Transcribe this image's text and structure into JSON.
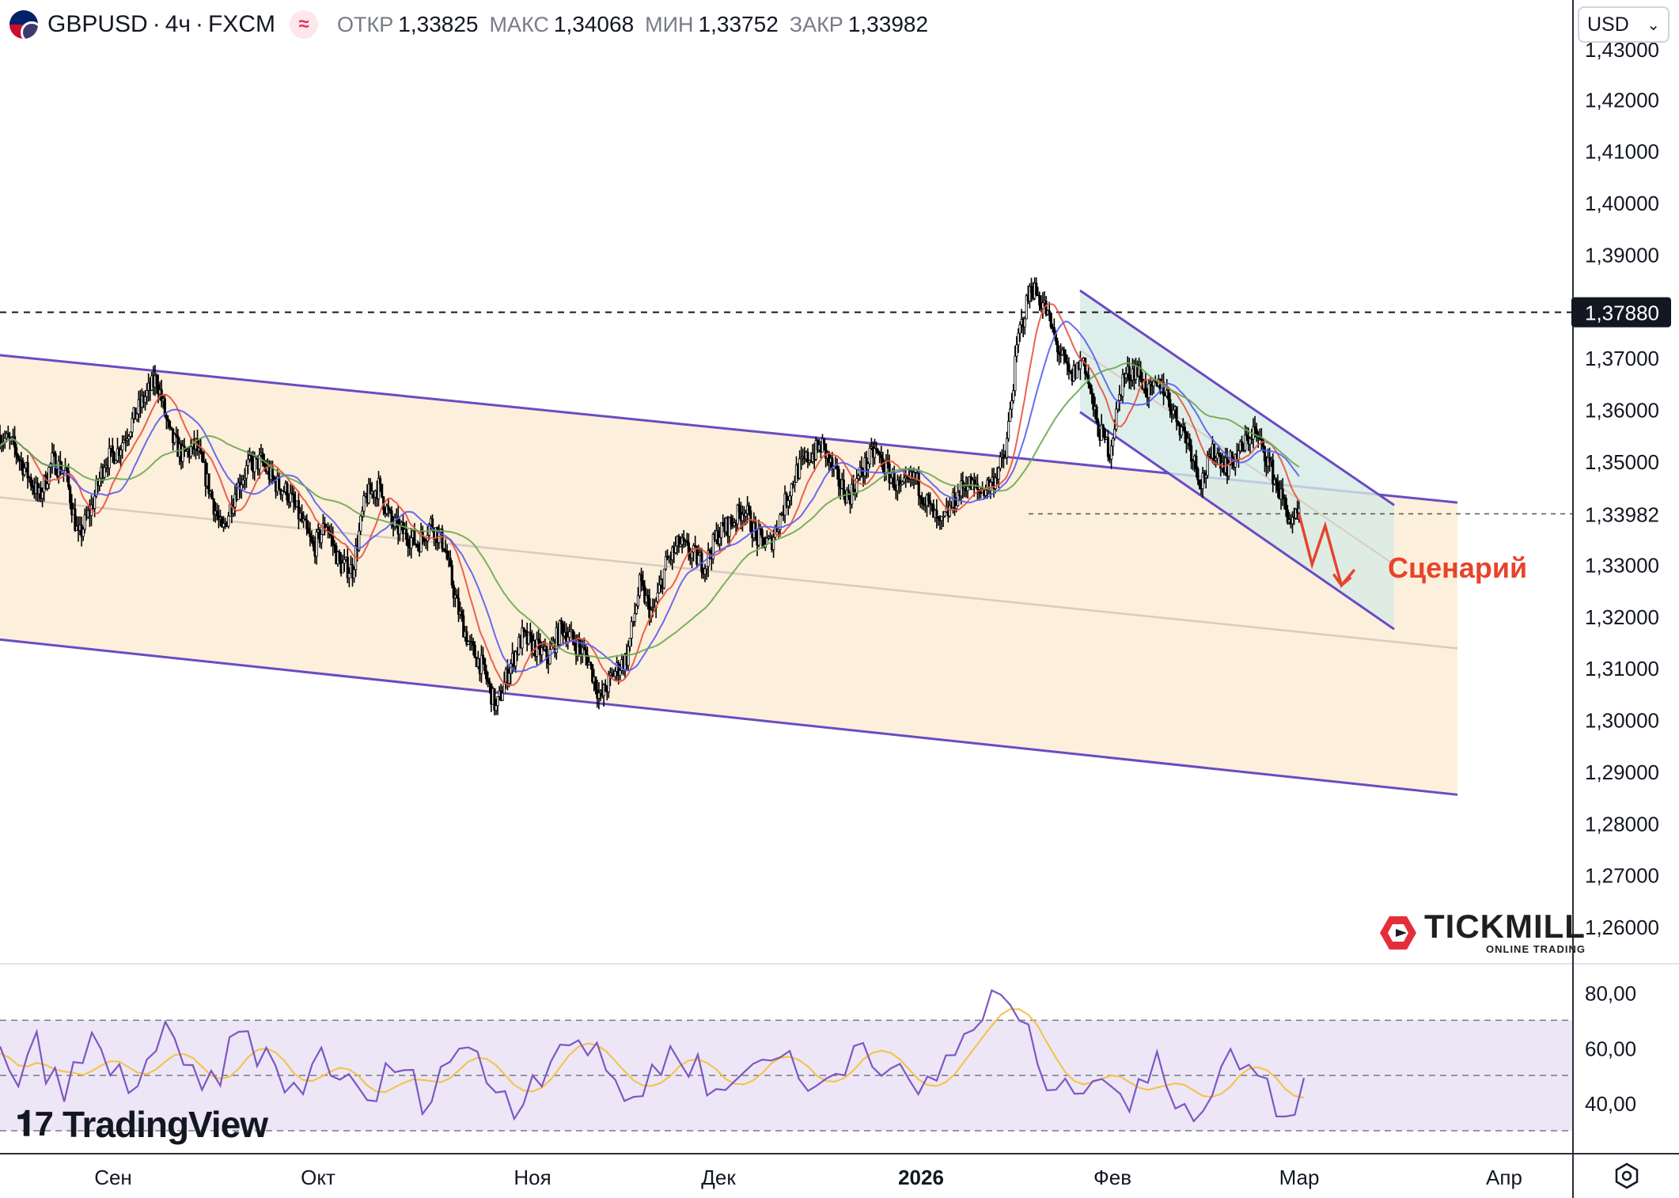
{
  "header": {
    "symbol": "GBPUSD",
    "interval": "4ч",
    "exchange": "FXCM",
    "open_label": "ОТКР",
    "open_value": "1,33825",
    "high_label": "МАКС",
    "high_value": "1,34068",
    "low_label": "МИН",
    "low_value": "1,33752",
    "close_label": "ЗАКР",
    "close_value": "1,33982"
  },
  "currency_select": {
    "value": "USD"
  },
  "brand": {
    "tradingview": "TradingView",
    "tickmill": "TICKMILL",
    "tickmill_sub": "ONLINE TRADING"
  },
  "colors": {
    "candle": "#000000",
    "channel_fill": "#fcefdc",
    "channel_line": "#6a4bc4",
    "mid_line": "#d8cbc0",
    "small_channel_fill": "#d6ebe6",
    "ma_fast": "#e8523f",
    "ma_mid": "#5a5cf0",
    "ma_slow": "#6aa84f",
    "rsi_line": "#7e57c2",
    "rsi_signal": "#f5c242",
    "rsi_band": "#ece6f6",
    "scenario": "#e8432b",
    "price_tag_bg": "#131722"
  },
  "chart_data": [
    {
      "type": "candlestick",
      "title": "GBPUSD · 4ч · FXCM",
      "x_labels": [
        "Сен",
        "Окт",
        "Ноя",
        "Дек",
        "2026",
        "Фев",
        "Мар",
        "Апр"
      ],
      "y_ticks": [
        "1,42000",
        "1,41000",
        "1,40000",
        "1,39000",
        "1,37000",
        "1,36000",
        "1,35000",
        "1,33000",
        "1,32000",
        "1,31000",
        "1,30000",
        "1,29000",
        "1,28000",
        "1,27000",
        "1,26000"
      ],
      "ylim": [
        1.2555,
        1.4305
      ],
      "current_price": "1,33982",
      "level_price": "1,37880",
      "annotation": "Сценарий",
      "close_path": [
        [
          0,
          1.355
        ],
        [
          8,
          1.353
        ],
        [
          16,
          1.348
        ],
        [
          24,
          1.343
        ],
        [
          32,
          1.35
        ],
        [
          40,
          1.348
        ],
        [
          48,
          1.335
        ],
        [
          56,
          1.341
        ],
        [
          64,
          1.35
        ],
        [
          72,
          1.352
        ],
        [
          80,
          1.357
        ],
        [
          88,
          1.362
        ],
        [
          96,
          1.366
        ],
        [
          104,
          1.355
        ],
        [
          112,
          1.351
        ],
        [
          120,
          1.353
        ],
        [
          128,
          1.345
        ],
        [
          136,
          1.336
        ],
        [
          144,
          1.344
        ],
        [
          152,
          1.349
        ],
        [
          160,
          1.35
        ],
        [
          168,
          1.346
        ],
        [
          176,
          1.344
        ],
        [
          184,
          1.339
        ],
        [
          192,
          1.333
        ],
        [
          200,
          1.338
        ],
        [
          208,
          1.33
        ],
        [
          216,
          1.329
        ],
        [
          224,
          1.343
        ],
        [
          232,
          1.345
        ],
        [
          240,
          1.338
        ],
        [
          248,
          1.336
        ],
        [
          256,
          1.334
        ],
        [
          264,
          1.338
        ],
        [
          272,
          1.334
        ],
        [
          280,
          1.322
        ],
        [
          288,
          1.314
        ],
        [
          296,
          1.31
        ],
        [
          304,
          1.302
        ],
        [
          312,
          1.31
        ],
        [
          320,
          1.316
        ],
        [
          328,
          1.314
        ],
        [
          336,
          1.312
        ],
        [
          344,
          1.318
        ],
        [
          352,
          1.315
        ],
        [
          360,
          1.312
        ],
        [
          368,
          1.304
        ],
        [
          376,
          1.309
        ],
        [
          384,
          1.312
        ],
        [
          392,
          1.326
        ],
        [
          400,
          1.32
        ],
        [
          408,
          1.33
        ],
        [
          416,
          1.334
        ],
        [
          424,
          1.332
        ],
        [
          432,
          1.33
        ],
        [
          440,
          1.336
        ],
        [
          448,
          1.338
        ],
        [
          456,
          1.341
        ],
        [
          464,
          1.335
        ],
        [
          472,
          1.334
        ],
        [
          480,
          1.341
        ],
        [
          488,
          1.348
        ],
        [
          496,
          1.351
        ],
        [
          504,
          1.353
        ],
        [
          512,
          1.347
        ],
        [
          520,
          1.343
        ],
        [
          528,
          1.348
        ],
        [
          536,
          1.352
        ],
        [
          544,
          1.348
        ],
        [
          552,
          1.344
        ],
        [
          560,
          1.347
        ],
        [
          568,
          1.342
        ],
        [
          576,
          1.337
        ],
        [
          584,
          1.342
        ],
        [
          592,
          1.346
        ],
        [
          600,
          1.344
        ],
        [
          608,
          1.346
        ],
        [
          616,
          1.351
        ],
        [
          624,
          1.374
        ],
        [
          632,
          1.384
        ],
        [
          640,
          1.38
        ],
        [
          648,
          1.372
        ],
        [
          656,
          1.366
        ],
        [
          664,
          1.37
        ],
        [
          672,
          1.357
        ],
        [
          680,
          1.352
        ],
        [
          688,
          1.366
        ],
        [
          696,
          1.368
        ],
        [
          704,
          1.363
        ],
        [
          712,
          1.365
        ],
        [
          720,
          1.359
        ],
        [
          728,
          1.354
        ],
        [
          736,
          1.346
        ],
        [
          744,
          1.352
        ],
        [
          752,
          1.349
        ],
        [
          760,
          1.352
        ],
        [
          768,
          1.356
        ],
        [
          776,
          1.351
        ],
        [
          784,
          1.344
        ],
        [
          792,
          1.3375
        ],
        [
          796,
          1.3398
        ]
      ],
      "series": [
        {
          "name": "",
          "values_ref": "ma_fast"
        },
        {
          "name": "",
          "values_ref": "ma_mid"
        },
        {
          "name": "",
          "values_ref": "ma_slow"
        }
      ],
      "scenario_path": [
        [
          796,
          1.3398
        ],
        [
          804,
          1.33
        ],
        [
          812,
          1.3375
        ],
        [
          822,
          1.326
        ],
        [
          830,
          1.329
        ]
      ]
    },
    {
      "type": "line",
      "title": "",
      "y_ticks": [
        "80,00",
        "60,00",
        "40,00"
      ],
      "ylim": [
        28,
        87
      ],
      "bands": [
        30,
        50,
        70
      ],
      "series": [
        {
          "name": "",
          "values": [
            58,
            55,
            48,
            52,
            60,
            54,
            47,
            44,
            50,
            56,
            61,
            57,
            52,
            49,
            46,
            51,
            55,
            60,
            63,
            58,
            53,
            48,
            44,
            47,
            52,
            57,
            62,
            65,
            60,
            55,
            50,
            46,
            43,
            48,
            53,
            58,
            55,
            50,
            45,
            42,
            40,
            44,
            49,
            54,
            50,
            46,
            43,
            47,
            52,
            57,
            61,
            58,
            54,
            50,
            46,
            43,
            40,
            44,
            48,
            53,
            58,
            62,
            66,
            63,
            59,
            55,
            51,
            48,
            45,
            42,
            46,
            50,
            54,
            57,
            60,
            56,
            52,
            48,
            45,
            43,
            47,
            51,
            55,
            58,
            61,
            57,
            53,
            49,
            46,
            44,
            48,
            52,
            56,
            60,
            63,
            60,
            56,
            52,
            48,
            45,
            42,
            46,
            50,
            55,
            60,
            64,
            68,
            72,
            76,
            80,
            74,
            68,
            62,
            56,
            50,
            46,
            42,
            46,
            50,
            54,
            52,
            48,
            44,
            40,
            44,
            48,
            52,
            48,
            44,
            41,
            38,
            42,
            46,
            50,
            54,
            58,
            54,
            49,
            44,
            40,
            38,
            42,
            46
          ]
        }
      ]
    }
  ]
}
